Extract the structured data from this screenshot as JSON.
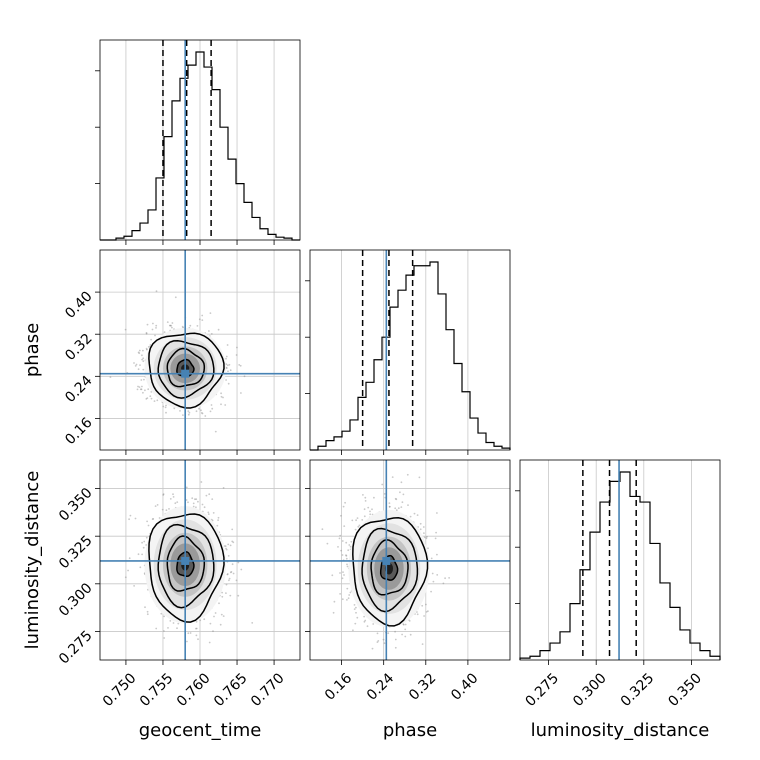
{
  "chart_data": {
    "type": "corner",
    "grid": true,
    "truth_color": "#4682b4",
    "hist_color": "#000000",
    "parameters": [
      {
        "name": "geocent_time",
        "label": "geocent_time",
        "range": [
          0.7465,
          0.7735
        ],
        "ticks": [
          0.75,
          0.755,
          0.76,
          0.765,
          0.77
        ],
        "tick_labels": [
          "0.750",
          "0.755",
          "0.760",
          "0.765",
          "0.770"
        ],
        "truth": 0.758,
        "quantiles": [
          0.755,
          0.7582,
          0.7615
        ],
        "hist_bins": [
          0.0,
          0.0,
          0.01,
          0.02,
          0.05,
          0.09,
          0.16,
          0.33,
          0.55,
          0.74,
          0.86,
          0.93,
          1.0,
          0.92,
          0.8,
          0.6,
          0.43,
          0.3,
          0.2,
          0.12,
          0.06,
          0.03,
          0.015,
          0.01,
          0.0
        ]
      },
      {
        "name": "phase",
        "label": "phase",
        "range": [
          0.1,
          0.48
        ],
        "ticks": [
          0.16,
          0.24,
          0.32,
          0.4
        ],
        "tick_labels": [
          "0.16",
          "0.24",
          "0.32",
          "0.40"
        ],
        "truth": 0.245,
        "quantiles": [
          0.2,
          0.25,
          0.295
        ],
        "hist_bins": [
          0.0,
          0.02,
          0.05,
          0.07,
          0.1,
          0.16,
          0.28,
          0.36,
          0.48,
          0.6,
          0.76,
          0.85,
          0.93,
          0.98,
          0.98,
          1.0,
          0.83,
          0.64,
          0.46,
          0.31,
          0.17,
          0.09,
          0.04,
          0.02,
          0.01
        ]
      },
      {
        "name": "luminosity_distance",
        "label": "luminosity_distance",
        "range": [
          0.26,
          0.365
        ],
        "ticks": [
          0.275,
          0.3,
          0.325,
          0.35
        ],
        "tick_labels": [
          "0.275",
          "0.300",
          "0.325",
          "0.350"
        ],
        "truth": 0.312,
        "quantiles": [
          0.293,
          0.307,
          0.321
        ],
        "hist_bins": [
          0.01,
          0.02,
          0.05,
          0.09,
          0.15,
          0.3,
          0.48,
          0.68,
          0.84,
          0.95,
          1.0,
          0.87,
          0.84,
          0.62,
          0.41,
          0.28,
          0.16,
          0.09,
          0.05,
          0.02
        ]
      }
    ],
    "pairs": [
      {
        "x": "geocent_time",
        "y": "phase",
        "center": [
          0.758,
          0.255
        ],
        "sigma": [
          0.0025,
          0.035
        ]
      },
      {
        "x": "geocent_time",
        "y": "luminosity_distance",
        "center": [
          0.758,
          0.31
        ],
        "sigma": [
          0.0025,
          0.014
        ]
      },
      {
        "x": "phase",
        "y": "luminosity_distance",
        "center": [
          0.25,
          0.308
        ],
        "sigma": [
          0.035,
          0.014
        ]
      }
    ]
  }
}
